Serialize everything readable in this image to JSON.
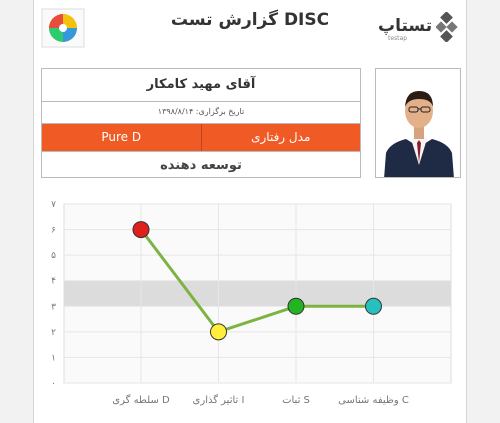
{
  "header": {
    "title": "گزارش تست DISC",
    "brand_name": "تستاپ",
    "brand_sub": "testap"
  },
  "profile": {
    "name": "آقای مهید کامکار",
    "date": "تاریخ برگزاری: ۱۳۹۸/۸/۱۴",
    "model_label": "مدل رفتاری",
    "model_value": "Pure D",
    "role": "توسعه دهنده"
  },
  "colors": {
    "accent": "#f05a24",
    "line": "#7cb342",
    "band": "#dcdcdc"
  },
  "chart_data": {
    "type": "line",
    "categories": [
      "سلطه گری D",
      "تاثیر گذاری I",
      "ثبات S",
      "وظیفه شناسی C"
    ],
    "values": [
      6,
      2,
      3,
      3
    ],
    "point_colors": [
      "#e0201b",
      "#ffef3a",
      "#22b522",
      "#26c0c0"
    ],
    "yticks": [
      "۰",
      "۱",
      "۲",
      "۳",
      "۴",
      "۵",
      "۶",
      "۷"
    ],
    "ylim": [
      0,
      7
    ],
    "band": [
      3,
      4
    ],
    "grid": true,
    "legend": "none"
  }
}
